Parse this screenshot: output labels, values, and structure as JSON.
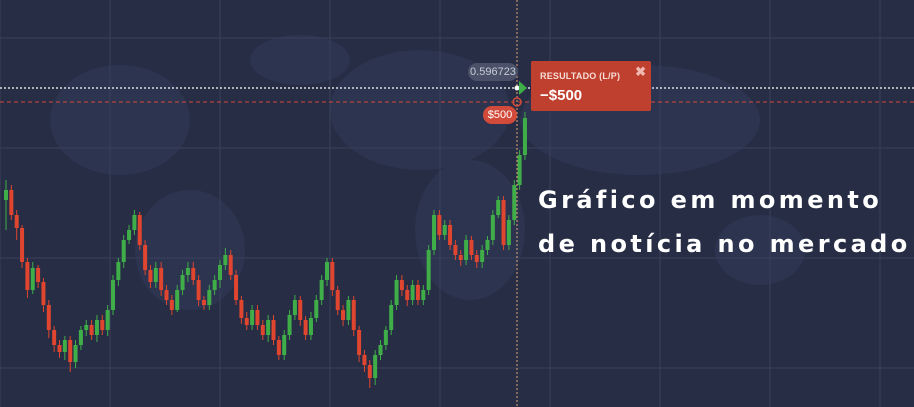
{
  "chart": {
    "current_price": "0.596723",
    "investment_tag": "$500",
    "result_label": "RESULTADO (L/P)",
    "result_value": "−$500",
    "close_symbol": "✖",
    "candles": [
      [
        200,
        190,
        180,
        230
      ],
      [
        190,
        215,
        185,
        220
      ],
      [
        215,
        228,
        210,
        240
      ],
      [
        228,
        262,
        225,
        268
      ],
      [
        262,
        290,
        258,
        298
      ],
      [
        290,
        268,
        262,
        294
      ],
      [
        268,
        282,
        265,
        288
      ],
      [
        282,
        305,
        278,
        312
      ],
      [
        305,
        330,
        300,
        338
      ],
      [
        330,
        345,
        326,
        352
      ],
      [
        345,
        352,
        340,
        358
      ],
      [
        352,
        340,
        336,
        360
      ],
      [
        340,
        362,
        336,
        372
      ],
      [
        362,
        345,
        340,
        368
      ],
      [
        345,
        330,
        326,
        350
      ],
      [
        330,
        325,
        320,
        336
      ],
      [
        325,
        335,
        320,
        340
      ],
      [
        335,
        320,
        315,
        342
      ],
      [
        320,
        330,
        315,
        335
      ],
      [
        330,
        310,
        305,
        336
      ],
      [
        310,
        280,
        275,
        315
      ],
      [
        280,
        262,
        258,
        286
      ],
      [
        262,
        240,
        235,
        268
      ],
      [
        240,
        230,
        225,
        244
      ],
      [
        230,
        215,
        210,
        235
      ],
      [
        215,
        245,
        212,
        250
      ],
      [
        245,
        270,
        240,
        275
      ],
      [
        270,
        282,
        265,
        288
      ],
      [
        282,
        268,
        262,
        288
      ],
      [
        268,
        290,
        262,
        296
      ],
      [
        290,
        300,
        285,
        305
      ],
      [
        300,
        310,
        295,
        315
      ],
      [
        310,
        290,
        285,
        312
      ],
      [
        290,
        275,
        270,
        295
      ],
      [
        275,
        268,
        262,
        282
      ],
      [
        268,
        280,
        262,
        285
      ],
      [
        280,
        300,
        275,
        306
      ],
      [
        300,
        305,
        296,
        310
      ],
      [
        305,
        290,
        285,
        310
      ],
      [
        290,
        280,
        275,
        295
      ],
      [
        280,
        265,
        260,
        288
      ],
      [
        265,
        255,
        248,
        270
      ],
      [
        255,
        275,
        250,
        280
      ],
      [
        275,
        300,
        270,
        305
      ],
      [
        300,
        318,
        296,
        324
      ],
      [
        318,
        325,
        312,
        330
      ],
      [
        325,
        310,
        305,
        330
      ],
      [
        310,
        325,
        305,
        330
      ],
      [
        325,
        335,
        320,
        340
      ],
      [
        335,
        320,
        315,
        342
      ],
      [
        320,
        340,
        315,
        345
      ],
      [
        340,
        355,
        336,
        360
      ],
      [
        355,
        335,
        330,
        360
      ],
      [
        335,
        315,
        310,
        340
      ],
      [
        315,
        300,
        295,
        320
      ],
      [
        300,
        320,
        296,
        326
      ],
      [
        320,
        335,
        316,
        340
      ],
      [
        335,
        318,
        312,
        340
      ],
      [
        318,
        300,
        295,
        322
      ],
      [
        300,
        280,
        275,
        305
      ],
      [
        280,
        262,
        258,
        286
      ],
      [
        262,
        290,
        258,
        296
      ],
      [
        290,
        310,
        286,
        315
      ],
      [
        310,
        320,
        305,
        326
      ],
      [
        320,
        300,
        296,
        325
      ],
      [
        300,
        330,
        296,
        336
      ],
      [
        330,
        355,
        326,
        362
      ],
      [
        355,
        365,
        350,
        372
      ],
      [
        365,
        378,
        360,
        388
      ],
      [
        378,
        355,
        350,
        385
      ],
      [
        355,
        345,
        340,
        360
      ],
      [
        345,
        330,
        326,
        350
      ],
      [
        330,
        305,
        300,
        335
      ],
      [
        305,
        280,
        275,
        310
      ],
      [
        280,
        290,
        275,
        296
      ],
      [
        290,
        300,
        285,
        306
      ],
      [
        300,
        285,
        280,
        305
      ],
      [
        285,
        300,
        280,
        305
      ],
      [
        300,
        290,
        285,
        305
      ],
      [
        290,
        250,
        245,
        295
      ],
      [
        250,
        215,
        210,
        255
      ],
      [
        215,
        235,
        210,
        240
      ],
      [
        235,
        225,
        220,
        240
      ],
      [
        225,
        245,
        220,
        250
      ],
      [
        245,
        255,
        240,
        260
      ],
      [
        255,
        260,
        250,
        266
      ],
      [
        260,
        240,
        235,
        265
      ],
      [
        240,
        255,
        236,
        260
      ],
      [
        255,
        262,
        250,
        268
      ],
      [
        262,
        250,
        245,
        268
      ],
      [
        250,
        240,
        236,
        255
      ],
      [
        240,
        215,
        210,
        245
      ],
      [
        215,
        200,
        196,
        218
      ],
      [
        200,
        245,
        196,
        250
      ],
      [
        245,
        220,
        215,
        250
      ],
      [
        220,
        185,
        180,
        225
      ],
      [
        185,
        155,
        150,
        190
      ],
      [
        155,
        118,
        112,
        160
      ]
    ]
  },
  "overlay": {
    "line1": "Gráfico em momento",
    "line2": "de notícia no mercado!"
  },
  "colors": {
    "background": "#262d44",
    "grid": "#39415a",
    "bull": "#3fae49",
    "bear": "#e0452f",
    "current_line": "#ffffff",
    "entry_line": "#d24a3a",
    "time_line": "#e8a470"
  }
}
